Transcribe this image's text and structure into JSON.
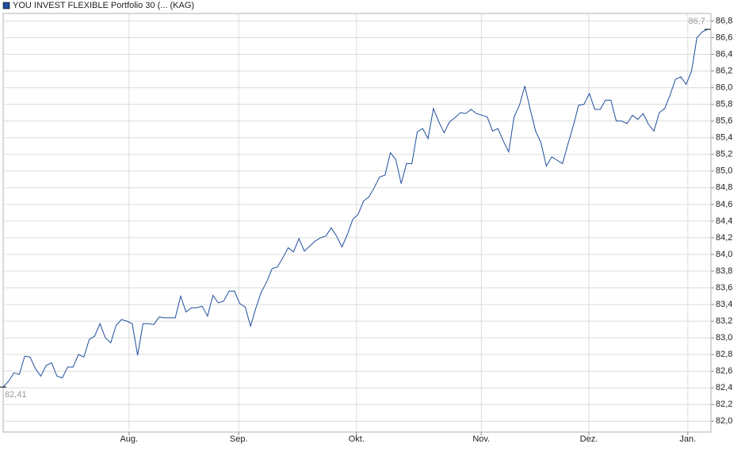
{
  "chart_data": {
    "type": "line",
    "series": [
      {
        "name": "YOU INVEST FLEXIBLE Portfolio 30 (... (KAG)",
        "color": "#1f4e9c",
        "values": [
          82.41,
          82.48,
          82.58,
          82.56,
          82.78,
          82.77,
          82.63,
          82.54,
          82.67,
          82.7,
          82.54,
          82.52,
          82.65,
          82.65,
          82.8,
          82.77,
          82.98,
          83.02,
          83.17,
          83.0,
          82.94,
          83.15,
          83.22,
          83.2,
          83.17,
          82.79,
          83.17,
          83.17,
          83.16,
          83.25,
          83.24,
          83.24,
          83.24,
          83.5,
          83.31,
          83.36,
          83.36,
          83.38,
          83.26,
          83.51,
          83.42,
          83.44,
          83.56,
          83.56,
          83.41,
          83.37,
          83.14,
          83.36,
          83.55,
          83.67,
          83.83,
          83.85,
          83.96,
          84.08,
          84.03,
          84.19,
          84.04,
          84.1,
          84.16,
          84.2,
          84.22,
          84.32,
          84.22,
          84.09,
          84.24,
          84.42,
          84.48,
          84.64,
          84.69,
          84.8,
          84.93,
          84.95,
          85.22,
          85.14,
          84.85,
          85.09,
          85.09,
          85.47,
          85.51,
          85.39,
          85.75,
          85.59,
          85.46,
          85.59,
          85.64,
          85.7,
          85.69,
          85.74,
          85.69,
          85.67,
          85.65,
          85.48,
          85.51,
          85.36,
          85.23,
          85.65,
          85.79,
          86.02,
          85.74,
          85.48,
          85.34,
          85.06,
          85.17,
          85.13,
          85.09,
          85.32,
          85.54,
          85.79,
          85.8,
          85.93,
          85.74,
          85.74,
          85.85,
          85.85,
          85.6,
          85.6,
          85.57,
          85.67,
          85.62,
          85.69,
          85.56,
          85.48,
          85.7,
          85.75,
          85.91,
          86.1,
          86.13,
          86.04,
          86.2,
          86.6,
          86.67,
          86.7
        ]
      }
    ],
    "xlim": [
      0,
      131.6
    ],
    "xticks": [
      {
        "value": 23.4,
        "label": "Aug."
      },
      {
        "value": 43.8,
        "label": "Sep."
      },
      {
        "value": 65.7,
        "label": "Okt."
      },
      {
        "value": 88.9,
        "label": "Nov."
      },
      {
        "value": 108.9,
        "label": "Dez."
      },
      {
        "value": 127.3,
        "label": "Jan."
      }
    ],
    "ylim": [
      81.87,
      86.89
    ],
    "yticks": [
      {
        "value": 82.0,
        "label": "82,0"
      },
      {
        "value": 82.2,
        "label": "82,2"
      },
      {
        "value": 82.4,
        "label": "82,4"
      },
      {
        "value": 82.6,
        "label": "82,6"
      },
      {
        "value": 82.8,
        "label": "82,8"
      },
      {
        "value": 83.0,
        "label": "83,0"
      },
      {
        "value": 83.2,
        "label": "83,2"
      },
      {
        "value": 83.4,
        "label": "83,4"
      },
      {
        "value": 83.6,
        "label": "83,6"
      },
      {
        "value": 83.8,
        "label": "83,8"
      },
      {
        "value": 84.0,
        "label": "84,0"
      },
      {
        "value": 84.2,
        "label": "84,2"
      },
      {
        "value": 84.4,
        "label": "84,4"
      },
      {
        "value": 84.6,
        "label": "84,6"
      },
      {
        "value": 84.8,
        "label": "84,8"
      },
      {
        "value": 85.0,
        "label": "85,0"
      },
      {
        "value": 85.2,
        "label": "85,2"
      },
      {
        "value": 85.4,
        "label": "85,4"
      },
      {
        "value": 85.6,
        "label": "85,6"
      },
      {
        "value": 85.8,
        "label": "85,8"
      },
      {
        "value": 86.0,
        "label": "86,0"
      },
      {
        "value": 86.2,
        "label": "86,2"
      },
      {
        "value": 86.4,
        "label": "86,4"
      },
      {
        "value": 86.6,
        "label": "86,6"
      },
      {
        "value": 86.8,
        "label": "86,8"
      }
    ],
    "annotations": [
      {
        "value": 82.41,
        "label": "82,41"
      },
      {
        "value": 86.7,
        "label": "86,7"
      }
    ],
    "grid": true
  }
}
